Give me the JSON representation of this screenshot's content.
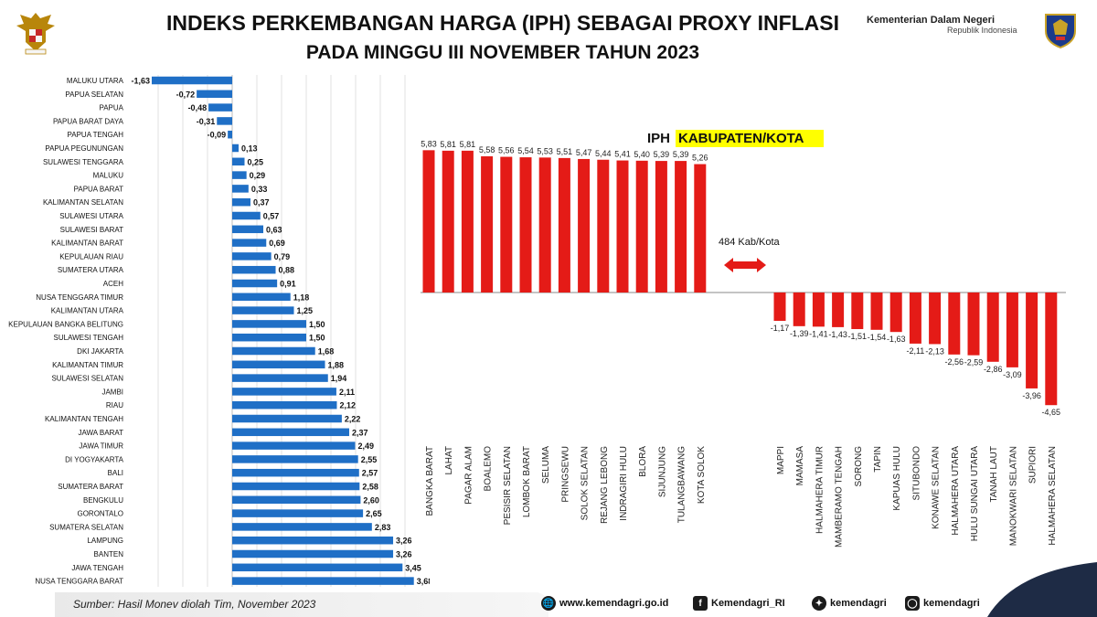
{
  "header": {
    "title_line1": "INDEKS PERKEMBANGAN HARGA (IPH) SEBAGAI PROXY INFLASI",
    "title_line2": "PADA MINGGU III NOVEMBER TAHUN 2023",
    "org_name": "Kementerian Dalam Negeri",
    "org_sub": "Republik Indonesia"
  },
  "footer": {
    "source": "Sumber: Hasil Monev  diolah Tim, November 2023",
    "website": "www.kemendagri.go.id",
    "facebook": "Kemendagri_RI",
    "twitter": "kemendagri",
    "instagram": "kemendagri"
  },
  "colors": {
    "province_bar": "#1f6fc6",
    "kab_bar": "#e41b17",
    "highlight": "#ffff00"
  },
  "chart_data": [
    {
      "type": "bar",
      "orientation": "horizontal",
      "title": "",
      "categories": [
        "MALUKU UTARA",
        "PAPUA SELATAN",
        "PAPUA",
        "PAPUA BARAT DAYA",
        "PAPUA TENGAH",
        "PAPUA PEGUNUNGAN",
        "SULAWESI TENGGARA",
        "MALUKU",
        "PAPUA BARAT",
        "KALIMANTAN SELATAN",
        "SULAWESI UTARA",
        "SULAWESI BARAT",
        "KALIMANTAN BARAT",
        "KEPULAUAN RIAU",
        "SUMATERA UTARA",
        "ACEH",
        "NUSA TENGGARA TIMUR",
        "KALIMANTAN UTARA",
        "KEPULAUAN BANGKA BELITUNG",
        "SULAWESI TENGAH",
        "DKI JAKARTA",
        "KALIMANTAN TIMUR",
        "SULAWESI SELATAN",
        "JAMBI",
        "RIAU",
        "KALIMANTAN TENGAH",
        "JAWA BARAT",
        "JAWA TIMUR",
        "DI YOGYAKARTA",
        "BALI",
        "SUMATERA BARAT",
        "BENGKULU",
        "GORONTALO",
        "SUMATERA SELATAN",
        "LAMPUNG",
        "BANTEN",
        "JAWA TENGAH",
        "NUSA TENGGARA BARAT"
      ],
      "values": [
        -1.63,
        -0.72,
        -0.48,
        -0.31,
        -0.09,
        0.13,
        0.25,
        0.29,
        0.33,
        0.37,
        0.57,
        0.63,
        0.69,
        0.79,
        0.88,
        0.91,
        1.18,
        1.25,
        1.5,
        1.5,
        1.68,
        1.88,
        1.94,
        2.11,
        2.12,
        2.22,
        2.37,
        2.49,
        2.55,
        2.57,
        2.58,
        2.6,
        2.65,
        2.83,
        3.26,
        3.26,
        3.45,
        3.68
      ],
      "value_labels": [
        "-1,63",
        "-0,72",
        "-0,48",
        "-0,31",
        "-0,09",
        "0,13",
        "0,25",
        "0,29",
        "0,33",
        "0,37",
        "0,57",
        "0,63",
        "0,69",
        "0,79",
        "0,88",
        "0,91",
        "1,18",
        "1,25",
        "1,50",
        "1,50",
        "1,68",
        "1,88",
        "1,94",
        "2,11",
        "2,12",
        "2,22",
        "2,37",
        "2,49",
        "2,55",
        "2,57",
        "2,58",
        "2,60",
        "2,65",
        "2,83",
        "3,26",
        "3,26",
        "3,45",
        "3,68"
      ],
      "grid": true
    },
    {
      "type": "bar",
      "title_prefix": "IPH",
      "title_highlight": "KABUPATEN/KOTA",
      "annotation": "484 Kab/Kota",
      "categories": [
        "BANGKA BARAT",
        "LAHAT",
        "PAGAR ALAM",
        "BOALEMO",
        "PESISIR SELATAN",
        "LOMBOK BARAT",
        "SELUMA",
        "PRINGSEWU",
        "SOLOK SELATAN",
        "REJANG LEBONG",
        "INDRAGIRI HULU",
        "BLORA",
        "SIJUNJUNG",
        "TULANGBAWANG",
        "KOTA SOLOK",
        "MAPPI",
        "MAMASA",
        "HALMAHERA TIMUR",
        "MAMBERAMO TENGAH",
        "SORONG",
        "TAPIN",
        "KAPUAS HULU",
        "SITUBONDO",
        "KONAWE SELATAN",
        "HALMAHERA UTARA",
        "HULU SUNGAI UTARA",
        "TANAH LAUT",
        "MANOKWARI SELATAN",
        "SUPIORI",
        "HALMAHERA SELATAN"
      ],
      "values": [
        5.83,
        5.81,
        5.81,
        5.58,
        5.56,
        5.54,
        5.53,
        5.51,
        5.47,
        5.44,
        5.41,
        5.4,
        5.39,
        5.39,
        5.26,
        -1.17,
        -1.39,
        -1.41,
        -1.43,
        -1.51,
        -1.54,
        -1.63,
        -2.11,
        -2.13,
        -2.56,
        -2.59,
        -2.86,
        -3.09,
        -3.96,
        -4.65
      ],
      "value_labels": [
        "5,83",
        "5,81",
        "5,81",
        "5,58",
        "5,56",
        "5,54",
        "5,53",
        "5,51",
        "5,47",
        "5,44",
        "5,41",
        "5,40",
        "5,39",
        "5,39",
        "5,26",
        "-1,17",
        "-1,39",
        "-1,41",
        "-1,43",
        "-1,51",
        "-1,54",
        "-1,63",
        "-2,11",
        "-2,13",
        "-2,56",
        "-2,59",
        "-2,86",
        "-3,09",
        "-3,96",
        "-4,65"
      ]
    }
  ]
}
